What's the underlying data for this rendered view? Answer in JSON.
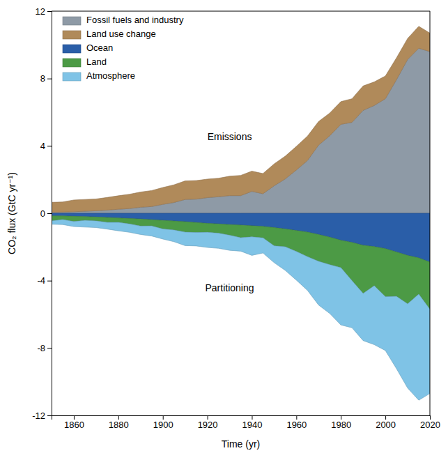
{
  "chart_data": {
    "type": "area",
    "stacked": true,
    "x_label": "Time (yr)",
    "y_label": "CO₂ flux (GtC yr⁻¹)",
    "x": [
      1850,
      1855,
      1860,
      1865,
      1870,
      1875,
      1880,
      1885,
      1890,
      1895,
      1900,
      1905,
      1910,
      1915,
      1920,
      1925,
      1930,
      1935,
      1940,
      1945,
      1950,
      1955,
      1960,
      1965,
      1970,
      1975,
      1980,
      1985,
      1990,
      1995,
      2000,
      2005,
      2010,
      2015,
      2020
    ],
    "xlim": [
      1850,
      2020
    ],
    "xticks": [
      1860,
      1880,
      1900,
      1920,
      1940,
      1960,
      1980,
      2000,
      2020
    ],
    "ylim": [
      -12,
      12
    ],
    "yticks": [
      -12,
      -8,
      -4,
      0,
      4,
      8,
      12
    ],
    "grid": false,
    "legend": "top-left",
    "series": [
      {
        "name": "Fossil fuels and industry",
        "color": "#8e9aa6",
        "values": [
          0.05,
          0.07,
          0.09,
          0.12,
          0.15,
          0.19,
          0.24,
          0.28,
          0.36,
          0.4,
          0.53,
          0.64,
          0.82,
          0.84,
          0.93,
          0.98,
          1.05,
          1.05,
          1.3,
          1.16,
          1.63,
          2.04,
          2.57,
          3.13,
          4.05,
          4.6,
          5.28,
          5.4,
          6.11,
          6.4,
          6.8,
          7.93,
          9.13,
          9.8,
          9.6
        ]
      },
      {
        "name": "Land use change",
        "color": "#b08a5a",
        "values": [
          0.6,
          0.6,
          0.7,
          0.7,
          0.7,
          0.75,
          0.8,
          0.85,
          0.9,
          0.95,
          1.0,
          1.05,
          1.1,
          1.1,
          1.1,
          1.1,
          1.15,
          1.2,
          1.2,
          1.2,
          1.3,
          1.35,
          1.4,
          1.45,
          1.4,
          1.35,
          1.35,
          1.4,
          1.45,
          1.4,
          1.35,
          1.3,
          1.25,
          1.3,
          1.1
        ]
      },
      {
        "name": "Ocean",
        "color": "#2a5ea8",
        "values": [
          -0.15,
          -0.16,
          -0.18,
          -0.2,
          -0.22,
          -0.25,
          -0.28,
          -0.31,
          -0.34,
          -0.38,
          -0.42,
          -0.46,
          -0.5,
          -0.55,
          -0.6,
          -0.63,
          -0.67,
          -0.7,
          -0.74,
          -0.78,
          -0.85,
          -0.93,
          -1.02,
          -1.12,
          -1.26,
          -1.42,
          -1.6,
          -1.73,
          -1.9,
          -1.98,
          -2.1,
          -2.3,
          -2.5,
          -2.65,
          -2.9
        ]
      },
      {
        "name": "Land",
        "color": "#4c9a45",
        "values": [
          -0.3,
          -0.21,
          -0.31,
          -0.22,
          -0.23,
          -0.29,
          -0.26,
          -0.32,
          -0.42,
          -0.37,
          -0.51,
          -0.53,
          -0.62,
          -0.59,
          -0.53,
          -0.55,
          -0.63,
          -0.75,
          -0.66,
          -0.68,
          -1.08,
          -1.06,
          -1.25,
          -1.46,
          -1.59,
          -1.63,
          -1.63,
          -2.27,
          -2.86,
          -2.32,
          -2.85,
          -2.63,
          -2.88,
          -2.15,
          -2.8
        ]
      },
      {
        "name": "Atmosphere",
        "color": "#7fc3e6",
        "values": [
          -0.2,
          -0.3,
          -0.3,
          -0.4,
          -0.4,
          -0.4,
          -0.5,
          -0.5,
          -0.5,
          -0.6,
          -0.6,
          -0.7,
          -0.8,
          -0.8,
          -0.9,
          -0.9,
          -0.9,
          -0.8,
          -1.1,
          -0.9,
          -1.0,
          -1.4,
          -1.7,
          -2.0,
          -2.6,
          -2.9,
          -3.4,
          -2.8,
          -2.8,
          -3.5,
          -3.2,
          -4.3,
          -5.0,
          -6.3,
          -5.0
        ]
      }
    ],
    "annotations": [
      {
        "text": "Emissions",
        "x": 1930,
        "y": 4.5
      },
      {
        "text": "Partitioning",
        "x": 1930,
        "y": -4.5
      }
    ]
  }
}
